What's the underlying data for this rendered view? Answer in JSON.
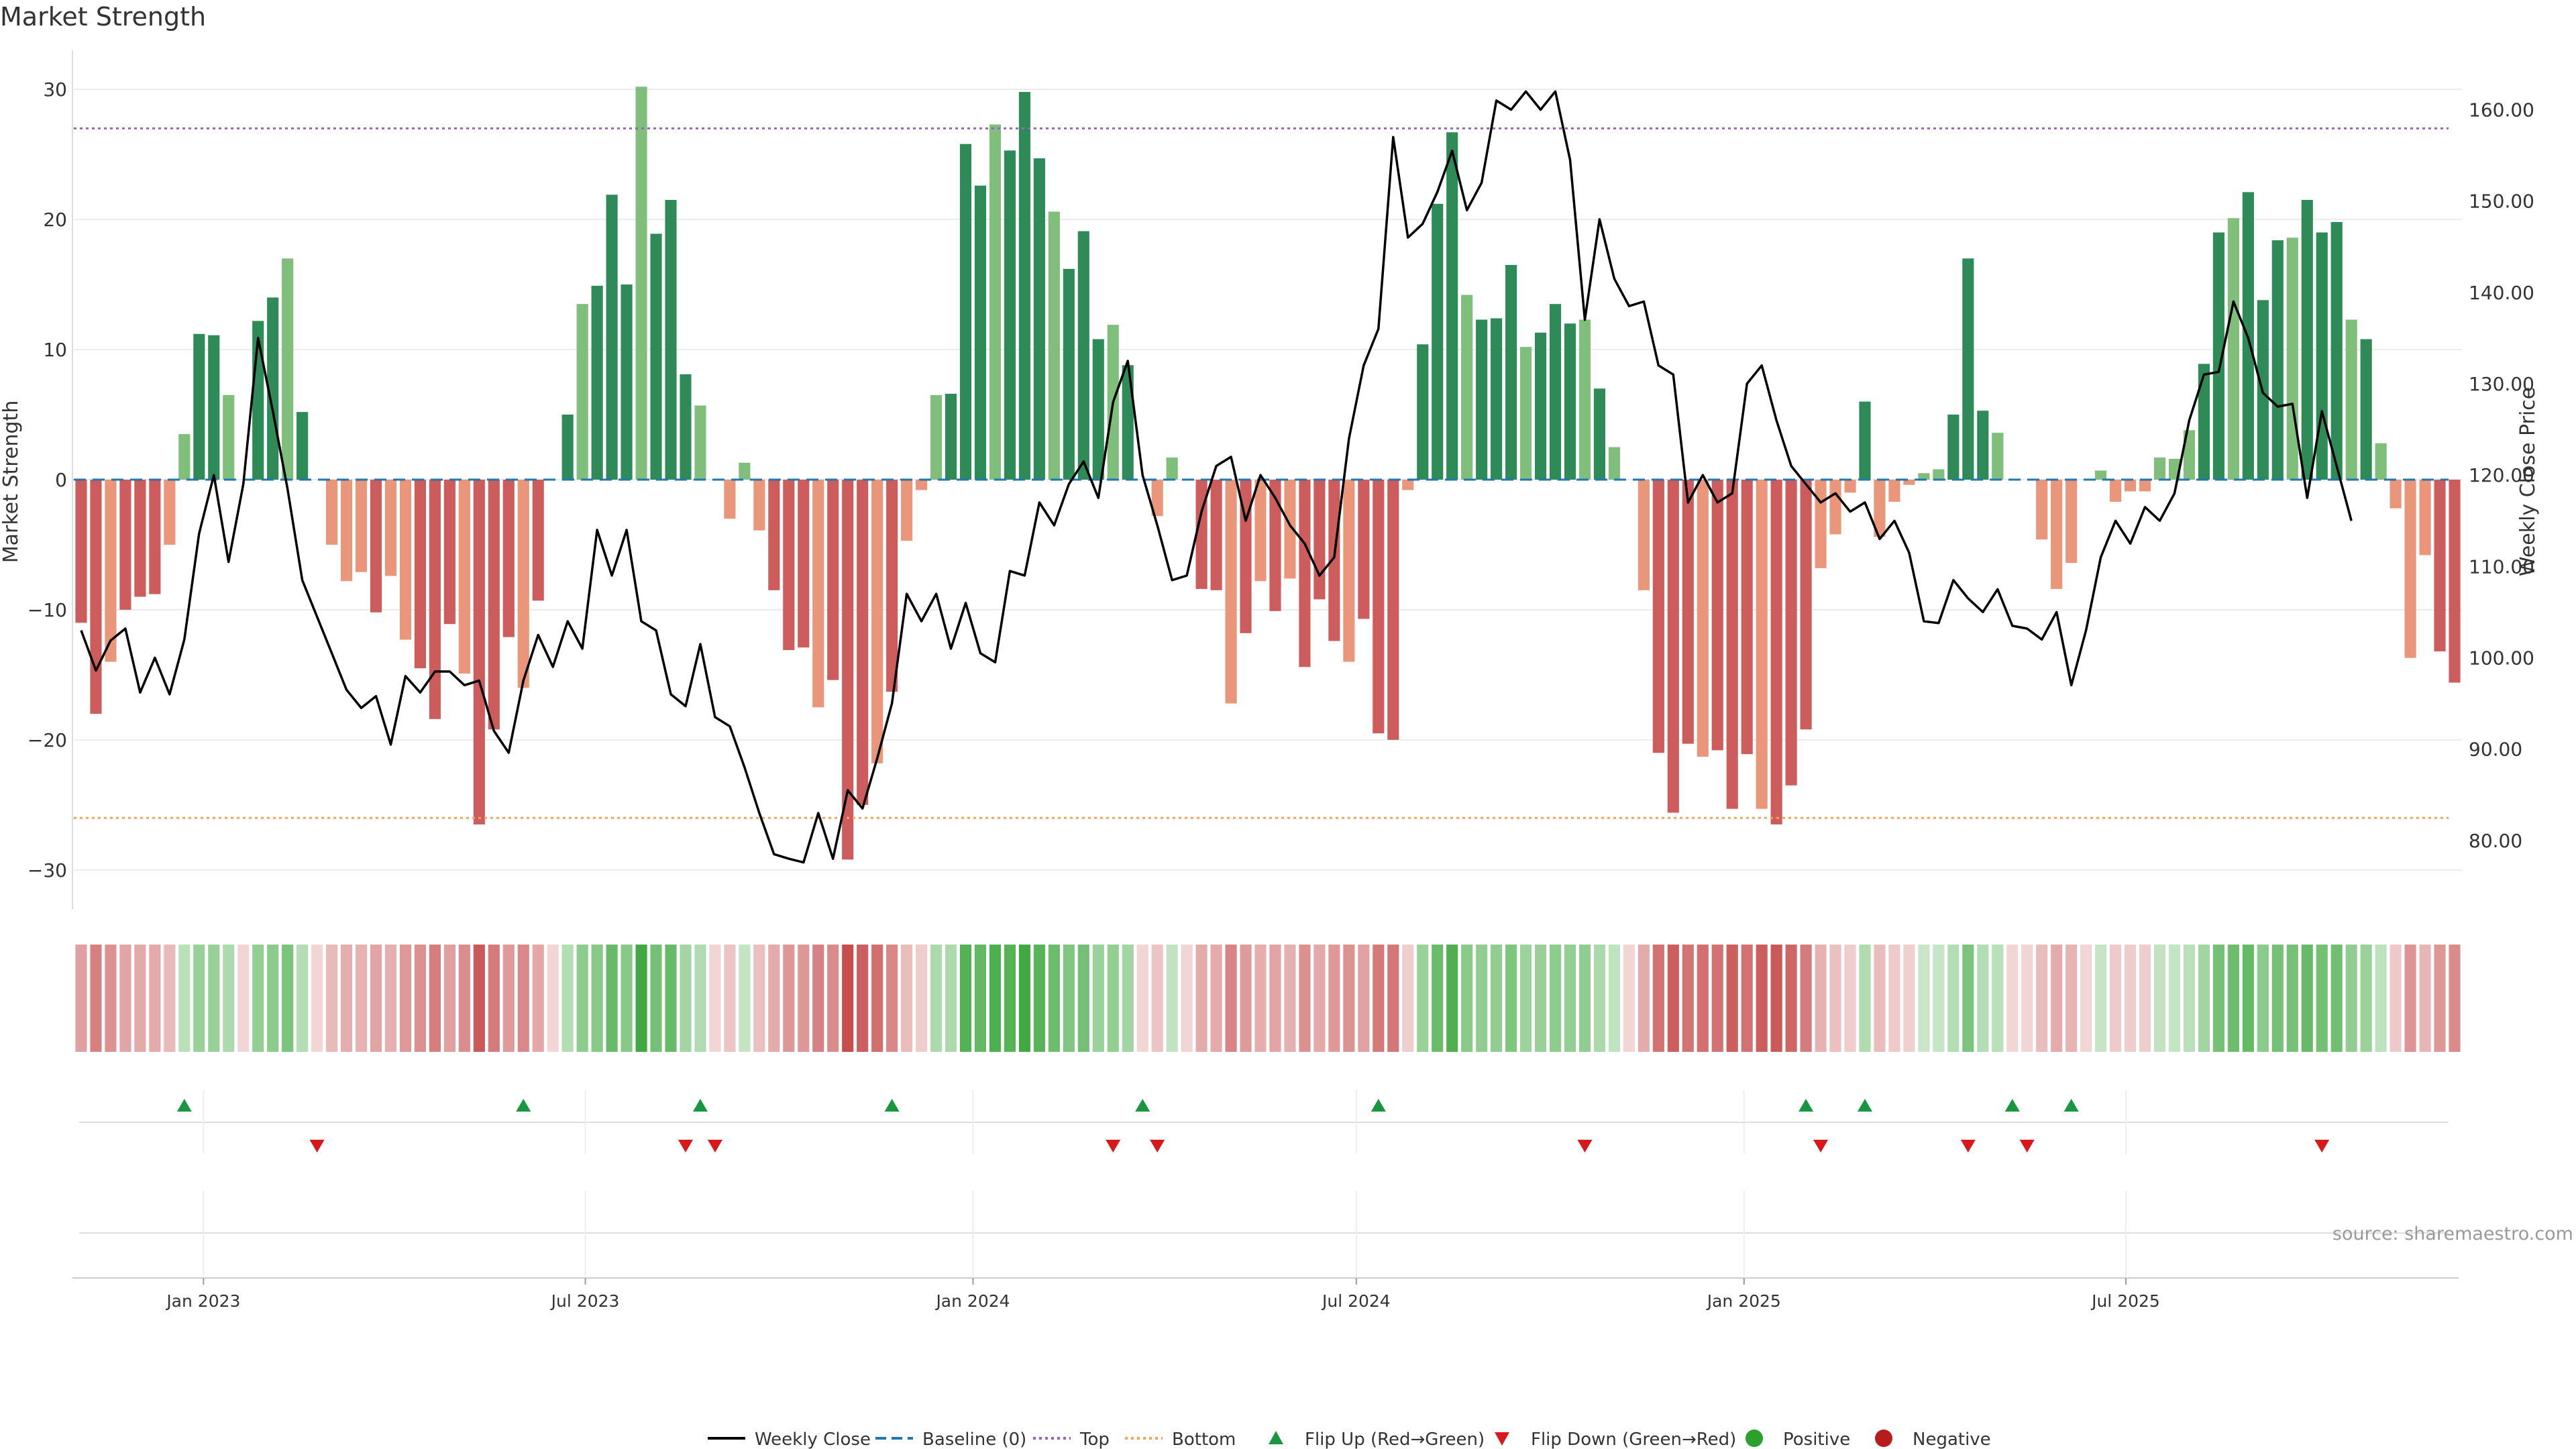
{
  "chart_data": {
    "type": "bar",
    "title": "Market Strength",
    "ylabel": "Market Strength",
    "y2label": "Weekly Close Price",
    "ylim": [
      -33,
      33
    ],
    "y2lim": [
      72.5,
      166.5
    ],
    "yticks": [
      30,
      20,
      10,
      0,
      -10,
      -20,
      -30
    ],
    "yticklabels": [
      "30",
      "20",
      "10",
      "0",
      "−10",
      "−20",
      "−30"
    ],
    "y2ticks": [
      160,
      150,
      140,
      130,
      120,
      110,
      100,
      90,
      80
    ],
    "y2ticklabels": [
      "160.00",
      "150.00",
      "140.00",
      "130.00",
      "120.00",
      "110.00",
      "100.00",
      "90.00",
      "80.00"
    ],
    "xticks": [
      {
        "label": "Jan 2023",
        "week": 8.3
      },
      {
        "label": "Jul 2023",
        "week": 34.2
      },
      {
        "label": "Jan 2024",
        "week": 60.5
      },
      {
        "label": "Jul 2024",
        "week": 86.5
      },
      {
        "label": "Jan 2025",
        "week": 112.8
      },
      {
        "label": "Jul 2025",
        "week": 138.7
      }
    ],
    "reference_lines": {
      "top": 27,
      "bottom": -26,
      "baseline": 0
    },
    "strength": [
      -11,
      -18,
      -14,
      -10,
      -9,
      -8.8,
      -5,
      3.5,
      11.2,
      11.1,
      6.5,
      0,
      12.2,
      14,
      17,
      5.2,
      0,
      -5,
      -7.8,
      -7.1,
      -10.2,
      -7.4,
      -12.3,
      -14.5,
      -18.4,
      -11.1,
      -14.9,
      -26.5,
      -19.2,
      -12.1,
      -16,
      -9.3,
      0,
      5,
      13.5,
      14.9,
      21.9,
      15,
      30.2,
      18.9,
      21.5,
      8.1,
      5.7,
      0,
      -3,
      1.3,
      -3.9,
      -8.5,
      -13.1,
      -12.9,
      -17.5,
      -15.4,
      -29.2,
      -25,
      -21.8,
      -16.3,
      -4.7,
      -0.8,
      6.5,
      6.6,
      25.8,
      22.6,
      27.3,
      25.3,
      29.8,
      24.7,
      20.6,
      16.2,
      19.1,
      10.8,
      11.9,
      8.8,
      0,
      -2.8,
      1.7,
      0,
      -8.4,
      -8.5,
      -17.2,
      -11.8,
      -7.8,
      -10.1,
      -7.6,
      -14.4,
      -9.2,
      -12.4,
      -14,
      -10.7,
      -19.5,
      -20,
      -0.8,
      10.4,
      21.2,
      26.7,
      14.2,
      12.3,
      12.4,
      16.5,
      10.2,
      11.3,
      13.5,
      12,
      12.3,
      7,
      2.5,
      0,
      -8.5,
      -21,
      -25.6,
      -20.3,
      -21.3,
      -20.8,
      -25.3,
      -21.1,
      -25.3,
      -26.5,
      -23.5,
      -19.2,
      -6.8,
      -4.2,
      -1,
      6,
      -4.4,
      -1.7,
      -0.4,
      0.5,
      0.8,
      5,
      17,
      5.3,
      3.6,
      0,
      0,
      -4.6,
      -8.4,
      -6.4,
      0,
      0.7,
      -1.7,
      -0.9,
      -0.9,
      1.7,
      1.6,
      3.8,
      8.9,
      19,
      20.1,
      22.1,
      13.8,
      18.4,
      18.6,
      21.5,
      19,
      19.8,
      12.3,
      10.8,
      2.8,
      -2.2,
      -13.7,
      -5.8,
      -13.2,
      -15.6
    ],
    "weekly_close": [
      103,
      98.6,
      101.9,
      103.2,
      96.2,
      100,
      96,
      102,
      113.6,
      120,
      110.5,
      119,
      135,
      127,
      118.5,
      108.5,
      104.5,
      100.5,
      96.5,
      94.5,
      95.8,
      90.5,
      98,
      96.2,
      98.5,
      98.5,
      97,
      97.5,
      92,
      89.6,
      97.5,
      102.5,
      99,
      104,
      101,
      114,
      109,
      114,
      104,
      103,
      96,
      94.7,
      101.5,
      93.5,
      92.5,
      88,
      83,
      78.5,
      78,
      77.6,
      83,
      78,
      85.5,
      83.5,
      89,
      95,
      107,
      104,
      107,
      101,
      106,
      100.5,
      99.5,
      109.5,
      109,
      117,
      114.5,
      119,
      121.5,
      117.5,
      128,
      132.5,
      120,
      114.5,
      108.5,
      109,
      116,
      121,
      122,
      115,
      120,
      117.5,
      114.5,
      112.5,
      109,
      111,
      124,
      132,
      136,
      157,
      146,
      147.5,
      151,
      155.5,
      149,
      152,
      161,
      160,
      162,
      160,
      162,
      154.5,
      137,
      148,
      141.5,
      138.5,
      139,
      132,
      131,
      117,
      120,
      117,
      118,
      130,
      132,
      126,
      121,
      119,
      117,
      118,
      116,
      117,
      113,
      115,
      111.5,
      104,
      103.8,
      108.5,
      106.5,
      105,
      107.5,
      103.5,
      103.2,
      102,
      105,
      97,
      103,
      111,
      115,
      112.5,
      116.5,
      115,
      118,
      126,
      131,
      131.3,
      139,
      135,
      129,
      127.5,
      127.8,
      117.5,
      127,
      121,
      115
    ]
  },
  "heat_strip": {
    "visible": true,
    "colors": [
      "Positive",
      "Negative"
    ]
  },
  "signals": {
    "flip_up_weeks": [
      7,
      30,
      42,
      55,
      72,
      88,
      117,
      121,
      131,
      135
    ],
    "flip_down_weeks": [
      16,
      41,
      43,
      70,
      73,
      102,
      118,
      128,
      132,
      152
    ]
  },
  "legend": {
    "weekly_close": "Weekly Close",
    "baseline": "Baseline (0)",
    "top": "Top",
    "bottom": "Bottom",
    "flip_up": "Flip Up (Red→Green)",
    "flip_down": "Flip Down (Green→Red)",
    "positive": "Positive",
    "negative": "Negative"
  },
  "source": "source: sharemaestro.com",
  "colors": {
    "strong_green": "#2e8b57",
    "light_green": "#7fbf7b",
    "strong_red": "#cd5c5c",
    "light_red": "#e9967a",
    "line": "#000000",
    "top_line": "#9467bd",
    "bottom_line": "#f4a460",
    "baseline": "#1f77b4",
    "flip_up": "#1a9641",
    "flip_down": "#d7191c",
    "positive": "#2ca02c",
    "negative": "#b71c1c"
  }
}
